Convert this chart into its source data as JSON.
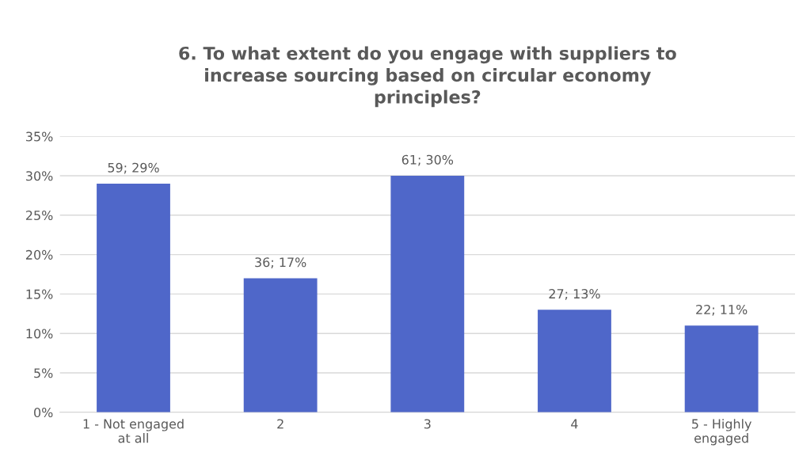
{
  "chart_data": {
    "type": "bar",
    "title": "6. To what extent do you engage with suppliers to increase sourcing based on circular economy principles?",
    "categories": [
      "1 - Not engaged at all",
      "2",
      "3",
      "4",
      "5 - Highly engaged"
    ],
    "values": [
      29,
      17,
      30,
      13,
      11
    ],
    "value_labels": [
      "59; 29%",
      "36; 17%",
      "61; 30%",
      "27; 13%",
      "22; 11%"
    ],
    "color": "#4f67c9",
    "ylim": [
      0,
      35
    ],
    "yticks": [
      {
        "value": 0,
        "label": "0%"
      },
      {
        "value": 5,
        "label": "5%"
      },
      {
        "value": 10,
        "label": "10%"
      },
      {
        "value": 15,
        "label": "15%"
      },
      {
        "value": 20,
        "label": "20%"
      },
      {
        "value": 25,
        "label": "25%"
      },
      {
        "value": 30,
        "label": "30%"
      },
      {
        "value": 35,
        "label": "35%"
      }
    ],
    "grid": "y"
  }
}
